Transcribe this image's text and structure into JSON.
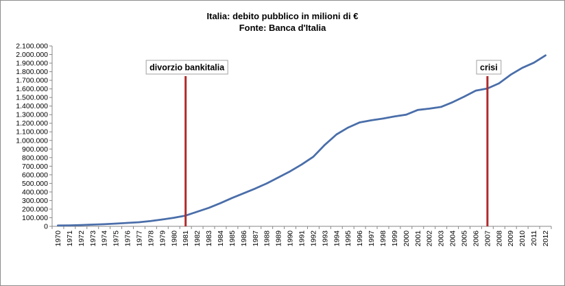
{
  "chart_data": {
    "type": "line",
    "title": "Italia: debito pubblico in milioni di €",
    "subtitle": "Fonte: Banca d'Italia",
    "xlabel": "",
    "ylabel": "",
    "ylim": [
      0,
      2100000
    ],
    "y_ticks": [
      "0",
      "100.000",
      "200.000",
      "300.000",
      "400.000",
      "500.000",
      "600.000",
      "700.000",
      "800.000",
      "900.000",
      "1.000.000",
      "1.100.000",
      "1.200.000",
      "1.300.000",
      "1.400.000",
      "1.500.000",
      "1.600.000",
      "1.700.000",
      "1.800.000",
      "1.900.000",
      "2.000.000",
      "2.100.000"
    ],
    "x": [
      "1970",
      "1971",
      "1972",
      "1973",
      "1974",
      "1975",
      "1976",
      "1977",
      "1978",
      "1979",
      "1980",
      "1981",
      "1982",
      "1983",
      "1984",
      "1985",
      "1986",
      "1987",
      "1988",
      "1989",
      "1990",
      "1991",
      "1992",
      "1993",
      "1994",
      "1995",
      "1996",
      "1997",
      "1998",
      "1999",
      "2000",
      "2001",
      "2002",
      "2003",
      "2004",
      "2005",
      "2006",
      "2007",
      "2008",
      "2009",
      "2010",
      "2011",
      "2012"
    ],
    "series": [
      {
        "color": "#4a6ea9",
        "values": [
          10000,
          11000,
          15000,
          20000,
          25000,
          32000,
          40000,
          48000,
          62000,
          80000,
          100000,
          125000,
          170000,
          215000,
          270000,
          330000,
          385000,
          440000,
          500000,
          570000,
          640000,
          720000,
          810000,
          950000,
          1070000,
          1150000,
          1210000,
          1235000,
          1255000,
          1280000,
          1300000,
          1355000,
          1370000,
          1390000,
          1445000,
          1510000,
          1580000,
          1605000,
          1665000,
          1765000,
          1845000,
          1905000,
          1990000
        ]
      }
    ],
    "grid": false,
    "annotations": [
      {
        "label": "divorzio bankitalia",
        "x": "1981",
        "color": "#b02a2a"
      },
      {
        "label": "crisi",
        "x": "2007",
        "color": "#b02a2a"
      }
    ]
  }
}
